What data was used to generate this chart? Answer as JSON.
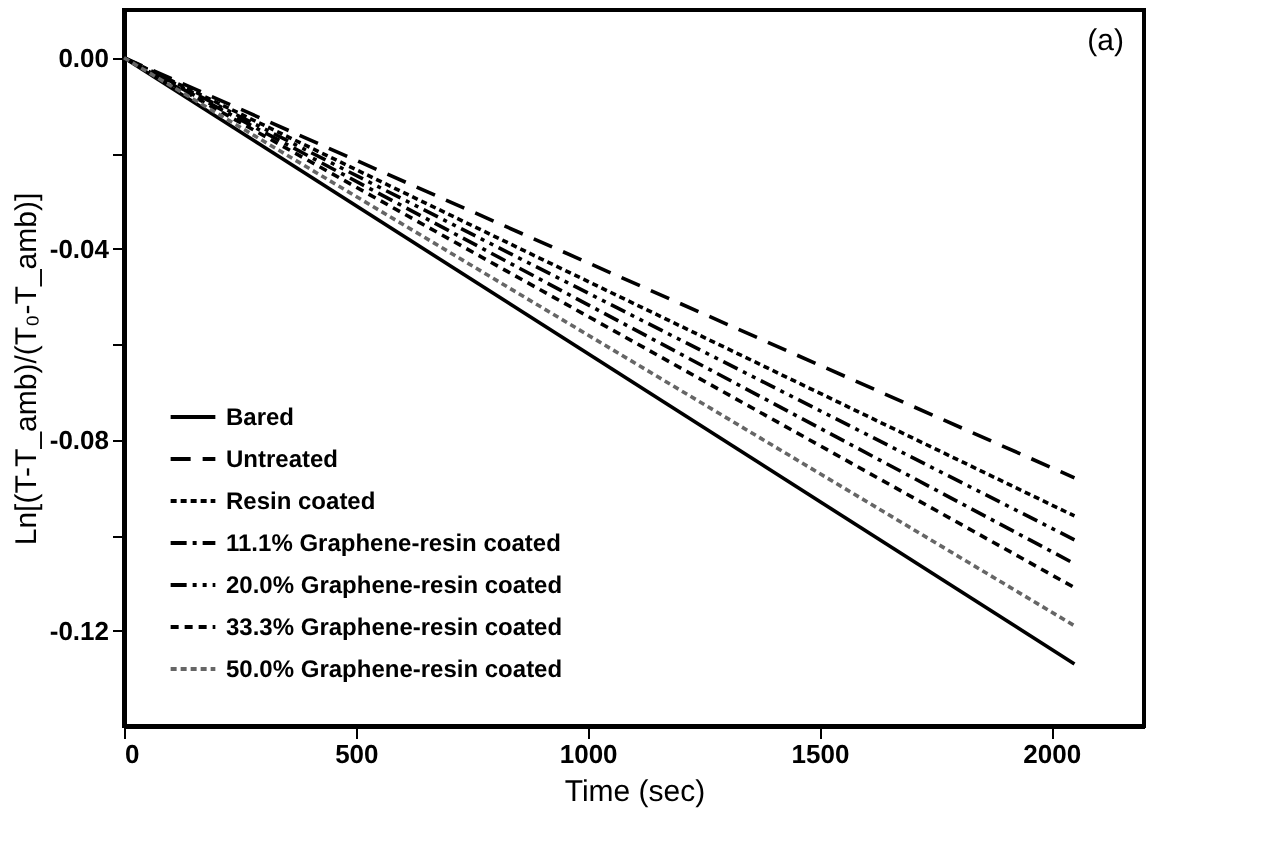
{
  "chart_data": {
    "type": "line",
    "xlabel": "Time (sec)",
    "ylabel": "Ln[(T-T_amb)/(T₀-T_amb)]",
    "annotations": [
      "(a)"
    ],
    "x": [
      0,
      2050
    ],
    "series": [
      {
        "name": "Bared",
        "color": "#000000",
        "line_style": "solid",
        "values": [
          0,
          -0.127
        ]
      },
      {
        "name": "Untreated",
        "color": "#000000",
        "line_style": "dashed",
        "values": [
          0,
          -0.088
        ]
      },
      {
        "name": "Resin coated",
        "color": "#000000",
        "line_style": "dotted",
        "values": [
          0,
          -0.096
        ]
      },
      {
        "name": "11.1% Graphene-resin coated",
        "color": "#000000",
        "line_style": "dashdot",
        "values": [
          0,
          -0.106
        ]
      },
      {
        "name": "20.0% Graphene-resin coated",
        "color": "#000000",
        "line_style": "dashdotdot",
        "values": [
          0,
          -0.101
        ]
      },
      {
        "name": "33.3% Graphene-resin coated",
        "color": "#000000",
        "line_style": "shortdash",
        "values": [
          0,
          -0.111
        ]
      },
      {
        "name": "50.0% Graphene-resin coated",
        "color": "#666666",
        "line_style": "dotted",
        "values": [
          0,
          -0.119
        ]
      }
    ],
    "xlim": [
      0,
      2200
    ],
    "xticks": [
      0,
      500,
      1000,
      1500,
      2000
    ],
    "ylim": [
      -0.14,
      0.01
    ],
    "yticks": [
      {
        "value": 0,
        "label": "0.00"
      },
      {
        "value": -0.02,
        "label": null
      },
      {
        "value": -0.04,
        "label": "-0.04"
      },
      {
        "value": -0.06,
        "label": null
      },
      {
        "value": -0.08,
        "label": "-0.08"
      },
      {
        "value": -0.1,
        "label": null
      },
      {
        "value": -0.12,
        "label": "-0.12"
      }
    ],
    "grid": false,
    "legend": "bottom left",
    "marker": "none"
  }
}
